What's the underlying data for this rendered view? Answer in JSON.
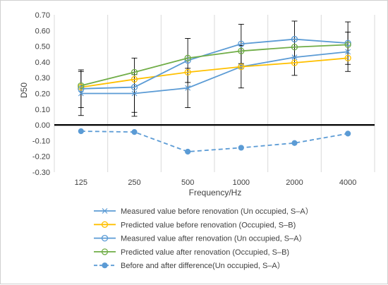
{
  "chart_data": {
    "type": "line",
    "title": "",
    "xlabel": "Frequency/Hz",
    "ylabel": "D50",
    "categories": [
      "125",
      "250",
      "500",
      "1000",
      "2000",
      "4000"
    ],
    "ylim": [
      -0.3,
      0.7
    ],
    "yticks": [
      "0.70",
      "0.60",
      "0.50",
      "0.40",
      "0.30",
      "0.20",
      "0.10",
      "0.00",
      "-0.10",
      "-0.20",
      "-0.30"
    ],
    "ytick_values": [
      0.7,
      0.6,
      0.5,
      0.4,
      0.3,
      0.2,
      0.1,
      0.0,
      -0.1,
      -0.2,
      -0.3
    ],
    "grid": "vertical",
    "legend_position": "bottom",
    "series": [
      {
        "name": "Measured value before renovation (Un occupied, S–A）",
        "values": [
          0.2,
          0.2,
          0.235,
          0.37,
          0.43,
          0.465
        ],
        "color": "#5b9bd5",
        "marker": "x",
        "dash": false,
        "error": [
          0.14,
          0.12,
          0.125,
          0.135,
          0.115,
          0.125
        ]
      },
      {
        "name": "Predicted value before renovation (Occupied, S–B)",
        "values": [
          0.24,
          0.29,
          0.335,
          0.37,
          0.395,
          0.425
        ],
        "color": "#ffc000",
        "marker": "circle-open",
        "dash": false
      },
      {
        "name": "Measured value after renovation (Un occupied, S–A）",
        "values": [
          0.23,
          0.24,
          0.41,
          0.515,
          0.545,
          0.52
        ],
        "color": "#5b9bd5",
        "marker": "circle-open",
        "dash": false,
        "error": [
          0.12,
          0.185,
          0.14,
          0.125,
          0.115,
          0.135
        ]
      },
      {
        "name": "Predicted value after renovation (Occupied, S–B)",
        "values": [
          0.25,
          0.335,
          0.425,
          0.47,
          0.495,
          0.51
        ],
        "color": "#70ad47",
        "marker": "circle-open",
        "dash": false
      },
      {
        "name": "Before and after difference(Un occupied, S–A）",
        "values": [
          -0.04,
          -0.045,
          -0.17,
          -0.145,
          -0.115,
          -0.055
        ],
        "color": "#5b9bd5",
        "marker": "circle-filled",
        "dash": true
      }
    ]
  }
}
